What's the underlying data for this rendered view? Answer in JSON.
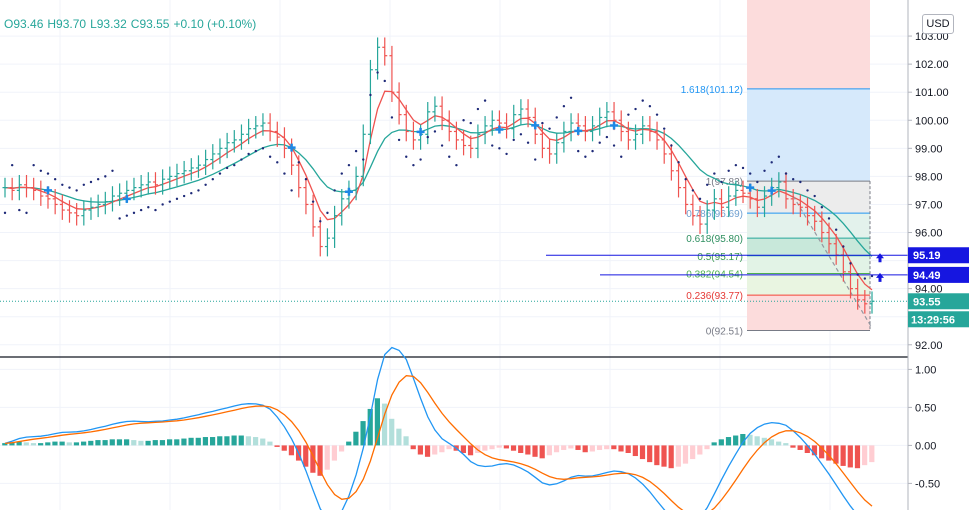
{
  "ohlc": {
    "o": "O93.46",
    "h": "H93.70",
    "l": "L93.32",
    "c": "C93.55",
    "chg": "+0.10 (+0.10%)"
  },
  "currency_button": "USD",
  "chart_data": [
    {
      "type": "candlestick",
      "title": "",
      "ylim": [
        91.6,
        104.0
      ],
      "y_ticks": [
        92.0,
        93.0,
        94.0,
        95.0,
        96.0,
        97.0,
        98.0,
        99.0,
        100.0,
        101.0,
        102.0,
        103.0
      ],
      "y_tick_labels": [
        "92.00",
        "",
        "94.00",
        "",
        "96.00",
        "97.00",
        "98.00",
        "99.00",
        "100.00",
        "101.00",
        "102.00",
        "103.00"
      ],
      "series": [
        {
          "kind": "ohlc",
          "close": [
            97.6,
            97.5,
            97.7,
            97.6,
            97.5,
            97.3,
            97.2,
            97.0,
            96.8,
            96.7,
            96.6,
            96.8,
            96.9,
            97.0,
            97.1,
            97.3,
            97.4,
            97.5,
            97.6,
            97.7,
            97.8,
            97.7,
            97.9,
            98.0,
            98.1,
            98.2,
            98.3,
            98.4,
            98.6,
            98.8,
            99.0,
            99.2,
            99.3,
            99.5,
            99.7,
            99.8,
            99.9,
            99.6,
            99.4,
            99.0,
            98.4,
            97.6,
            97.0,
            96.2,
            95.5,
            95.8,
            96.6,
            97.2,
            97.5,
            98.0,
            99.5,
            101.8,
            102.6,
            102.3,
            101.0,
            100.2,
            99.6,
            99.3,
            99.5,
            100.3,
            100.5,
            100.0,
            99.6,
            99.3,
            99.1,
            99.0,
            99.5,
            99.8,
            100.0,
            99.9,
            99.7,
            100.2,
            100.4,
            100.1,
            99.5,
            99.0,
            98.8,
            99.2,
            99.6,
            99.9,
            99.8,
            99.6,
            99.8,
            100.1,
            100.3,
            100.0,
            99.6,
            99.3,
            99.5,
            99.8,
            99.6,
            99.3,
            98.8,
            98.2,
            97.6,
            97.0,
            96.6,
            96.3,
            96.8,
            97.2,
            96.9,
            97.3,
            97.5,
            97.4,
            97.2,
            96.9,
            97.3,
            97.6,
            97.8,
            97.2,
            97.0,
            96.9,
            96.6,
            96.4,
            96.0,
            95.6,
            95.2,
            94.6,
            94.0,
            93.6,
            93.46,
            93.55
          ]
        },
        {
          "kind": "line",
          "name": "",
          "color": "#26a69a"
        },
        {
          "kind": "line",
          "name": "",
          "color": "#ef5350"
        }
      ],
      "fibonacci": [
        {
          "level": "1.618",
          "value": 101.12,
          "label": "1.618(101.12)"
        },
        {
          "level": "1",
          "value": 97.83,
          "label": "1(97.83)"
        },
        {
          "level": "0.786",
          "value": 96.69,
          "label": "0.786(96.69)"
        },
        {
          "level": "0.618",
          "value": 95.8,
          "label": "0.618(95.80)"
        },
        {
          "level": "0.5",
          "value": 95.17,
          "label": "0.5(95.17)"
        },
        {
          "level": "0.382",
          "value": 94.54,
          "label": "0.382(94.54)"
        },
        {
          "level": "0.236",
          "value": 93.77,
          "label": "0.236(93.77)"
        },
        {
          "level": "0",
          "value": 92.51,
          "label": "0(92.51)"
        }
      ],
      "price_markers": [
        {
          "value": 95.19,
          "label": "95.19",
          "color": "#1616e0"
        },
        {
          "value": 94.49,
          "label": "94.49",
          "color": "#1616e0"
        },
        {
          "value": 93.55,
          "label": "93.55",
          "color": "#26a69a"
        }
      ],
      "countdown": "13:29:56"
    },
    {
      "type": "macd",
      "ylim": [
        -0.85,
        1.15
      ],
      "y_ticks": [
        1.0,
        0.5,
        0.0,
        -0.5
      ],
      "y_tick_labels": [
        "1.00",
        "0.50",
        "0.00",
        "-0.50"
      ],
      "histogram": [
        0.03,
        0.04,
        0.05,
        0.04,
        0.03,
        0.03,
        0.04,
        0.05,
        0.05,
        0.04,
        0.04,
        0.05,
        0.06,
        0.07,
        0.07,
        0.08,
        0.08,
        0.08,
        0.07,
        0.06,
        0.06,
        0.07,
        0.07,
        0.08,
        0.08,
        0.09,
        0.1,
        0.1,
        0.11,
        0.11,
        0.12,
        0.12,
        0.13,
        0.13,
        0.12,
        0.11,
        0.09,
        0.05,
        -0.02,
        -0.07,
        -0.13,
        -0.2,
        -0.28,
        -0.36,
        -0.4,
        -0.32,
        -0.2,
        -0.08,
        0.05,
        0.18,
        0.32,
        0.48,
        0.62,
        0.55,
        0.35,
        0.22,
        0.12,
        -0.05,
        -0.12,
        -0.15,
        -0.12,
        -0.09,
        -0.05,
        -0.07,
        -0.1,
        -0.13,
        -0.1,
        -0.07,
        -0.05,
        -0.03,
        -0.04,
        -0.07,
        -0.1,
        -0.12,
        -0.15,
        -0.17,
        -0.13,
        -0.09,
        -0.06,
        -0.04,
        -0.06,
        -0.09,
        -0.08,
        -0.06,
        -0.05,
        -0.05,
        -0.08,
        -0.1,
        -0.14,
        -0.18,
        -0.22,
        -0.26,
        -0.28,
        -0.3,
        -0.28,
        -0.24,
        -0.18,
        -0.12,
        -0.05,
        0.04,
        0.08,
        0.11,
        0.13,
        0.15,
        0.14,
        0.12,
        0.1,
        0.08,
        0.05,
        0.03,
        -0.03,
        -0.06,
        -0.1,
        -0.13,
        -0.17,
        -0.2,
        -0.24,
        -0.27,
        -0.29,
        -0.3,
        -0.26,
        -0.22
      ]
    }
  ]
}
